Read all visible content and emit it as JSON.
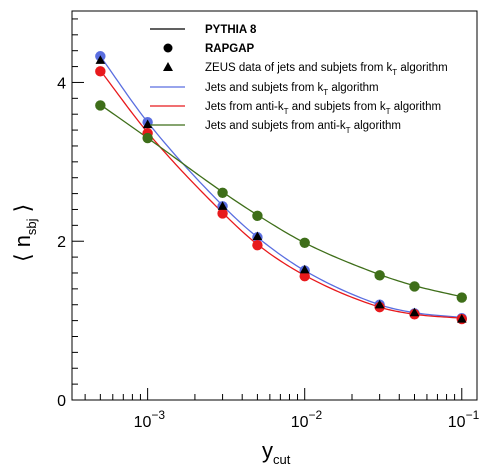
{
  "chart_data": {
    "type": "line",
    "xlabel": "y_cut",
    "ylabel": "⟨ n_sbj ⟩",
    "xscale": "log",
    "xlim": [
      0.00033,
      0.125
    ],
    "ylim": [
      0,
      4.9
    ],
    "x_ticks": [
      {
        "value": 0.001,
        "base": "10",
        "exp": "−3"
      },
      {
        "value": 0.01,
        "base": "10",
        "exp": "−2"
      },
      {
        "value": 0.1,
        "base": "10",
        "exp": "−1"
      }
    ],
    "y_ticks": [
      {
        "value": 0,
        "label": "0"
      },
      {
        "value": 2,
        "label": "2"
      },
      {
        "value": 4,
        "label": "4"
      }
    ],
    "x": [
      0.0005,
      0.001,
      0.003,
      0.005,
      0.01,
      0.03,
      0.05,
      0.1
    ],
    "zeus_data": [
      4.28,
      3.47,
      2.44,
      2.06,
      1.64,
      1.2,
      1.1,
      1.02
    ],
    "series": [
      {
        "name": "Jets and subjets from k_T algorithm",
        "color": "#5a6ee0",
        "pythia_curve": [
          4.33,
          3.5,
          2.45,
          2.05,
          1.63,
          1.2,
          1.1,
          1.04
        ],
        "rapgap": [
          4.33,
          3.5,
          2.44,
          2.05,
          1.63,
          1.2,
          1.09,
          1.03
        ]
      },
      {
        "name": "Jets from anti-k_T and subjets from k_T algorithm",
        "color": "#e8191c",
        "pythia_curve": [
          4.15,
          3.37,
          2.36,
          1.96,
          1.57,
          1.17,
          1.08,
          1.03
        ],
        "rapgap": [
          4.14,
          3.36,
          2.35,
          1.95,
          1.56,
          1.17,
          1.08,
          1.02
        ]
      },
      {
        "name": "Jets and subjets from anti-k_T algorithm",
        "color": "#3e6e19",
        "pythia_curve": [
          3.72,
          3.3,
          2.62,
          2.33,
          1.98,
          1.58,
          1.44,
          1.3
        ],
        "rapgap": [
          3.71,
          3.3,
          2.61,
          2.32,
          1.98,
          1.57,
          1.43,
          1.29
        ]
      }
    ],
    "legend": {
      "placement": "top-right",
      "pythia": "PYTHIA 8",
      "rapgap": "RAPGAP",
      "zeus": "ZEUS data of jets and subjets from k_T algorithm",
      "zeus_parts": [
        "ZEUS data of jets and subjets from k",
        "T",
        " algorithm"
      ],
      "series_parts": [
        [
          "Jets and subjets from k",
          "T",
          " algorithm"
        ],
        [
          "Jets from anti-k",
          "T",
          " and subjets from k",
          "T",
          " algorithm"
        ],
        [
          "Jets and subjets from anti-k",
          "T",
          " algorithm"
        ]
      ]
    }
  }
}
